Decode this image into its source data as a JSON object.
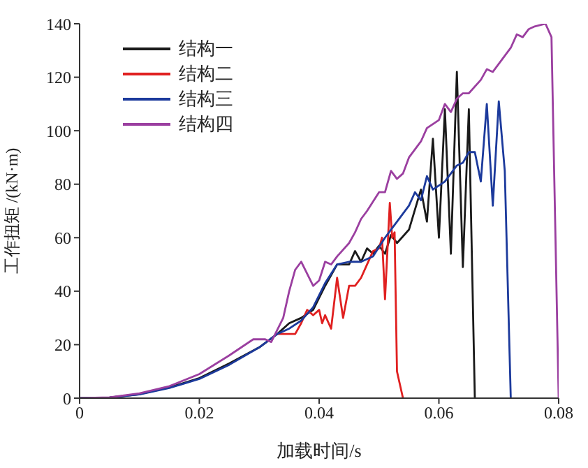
{
  "chart_data": {
    "type": "line",
    "xlabel": "加载时间/s",
    "ylabel": "工作扭矩 /(kN·m)",
    "xlim": [
      0,
      0.08
    ],
    "xticks": [
      0,
      0.02,
      0.04,
      0.06,
      0.08
    ],
    "ylim": [
      0,
      140
    ],
    "yticks": [
      0,
      20,
      40,
      60,
      80,
      100,
      120,
      140
    ],
    "grid": false,
    "legend": "top left",
    "marker": "none",
    "line_style": "solid",
    "series": [
      {
        "name": "结构一",
        "color": "#1a1a1a",
        "x": [
          0,
          0.005,
          0.01,
          0.015,
          0.02,
          0.025,
          0.03,
          0.033,
          0.035,
          0.037,
          0.039,
          0.041,
          0.043,
          0.045,
          0.046,
          0.047,
          0.048,
          0.049,
          0.05,
          0.051,
          0.052,
          0.053,
          0.055,
          0.057,
          0.058,
          0.059,
          0.06,
          0.061,
          0.062,
          0.063,
          0.064,
          0.065,
          0.066
        ],
        "values": [
          0,
          0.2,
          1.5,
          4,
          7.5,
          13,
          19,
          24,
          28,
          30,
          33,
          42,
          50,
          50,
          55,
          51,
          56,
          54,
          57,
          54,
          61,
          58,
          63,
          78,
          66,
          97,
          60,
          108,
          54,
          122,
          49,
          108,
          0
        ]
      },
      {
        "name": "结构二",
        "color": "#e02020",
        "x": [
          0.033,
          0.036,
          0.037,
          0.038,
          0.039,
          0.04,
          0.0405,
          0.041,
          0.042,
          0.043,
          0.044,
          0.045,
          0.046,
          0.047,
          0.048,
          0.049,
          0.05,
          0.0505,
          0.051,
          0.0518,
          0.0522,
          0.0526,
          0.053,
          0.054
        ],
        "values": [
          24,
          24,
          28,
          33,
          31,
          33,
          28,
          31,
          26,
          45,
          30,
          42,
          42,
          45,
          50,
          55,
          56,
          60,
          37,
          73,
          60,
          62,
          10,
          0
        ]
      },
      {
        "name": "结构三",
        "color": "#1c3a9c",
        "x": [
          0,
          0.005,
          0.01,
          0.015,
          0.02,
          0.025,
          0.03,
          0.033,
          0.035,
          0.037,
          0.039,
          0.041,
          0.043,
          0.045,
          0.047,
          0.049,
          0.051,
          0.053,
          0.055,
          0.056,
          0.057,
          0.058,
          0.059,
          0.061,
          0.063,
          0.064,
          0.065,
          0.066,
          0.067,
          0.068,
          0.069,
          0.07,
          0.071,
          0.072
        ],
        "values": [
          0,
          0.2,
          1.4,
          3.8,
          7.2,
          12.5,
          19,
          24,
          26,
          29,
          34,
          43,
          50,
          51,
          51,
          53,
          60,
          66,
          72,
          77,
          74,
          83,
          78,
          81,
          87,
          88,
          92,
          92,
          81,
          110,
          72,
          111,
          85,
          0
        ]
      },
      {
        "name": "结构四",
        "color": "#9b3fa0",
        "x": [
          0,
          0.005,
          0.01,
          0.015,
          0.02,
          0.025,
          0.029,
          0.031,
          0.032,
          0.034,
          0.035,
          0.036,
          0.037,
          0.039,
          0.04,
          0.041,
          0.042,
          0.043,
          0.045,
          0.046,
          0.047,
          0.048,
          0.05,
          0.051,
          0.052,
          0.053,
          0.054,
          0.055,
          0.057,
          0.058,
          0.06,
          0.061,
          0.062,
          0.063,
          0.064,
          0.065,
          0.067,
          0.068,
          0.069,
          0.07,
          0.072,
          0.073,
          0.074,
          0.075,
          0.076,
          0.0778,
          0.0788,
          0.08
        ],
        "values": [
          0,
          0.3,
          1.8,
          4.5,
          9,
          16,
          22,
          22,
          21,
          30,
          40,
          48,
          51,
          42,
          44,
          51,
          50,
          53,
          58,
          62,
          67,
          70,
          77,
          77,
          85,
          82,
          84,
          90,
          96,
          101,
          104,
          110,
          107,
          112,
          114,
          114,
          119,
          123,
          122,
          125,
          131,
          136,
          135,
          138,
          139,
          140,
          135,
          0
        ]
      }
    ]
  }
}
